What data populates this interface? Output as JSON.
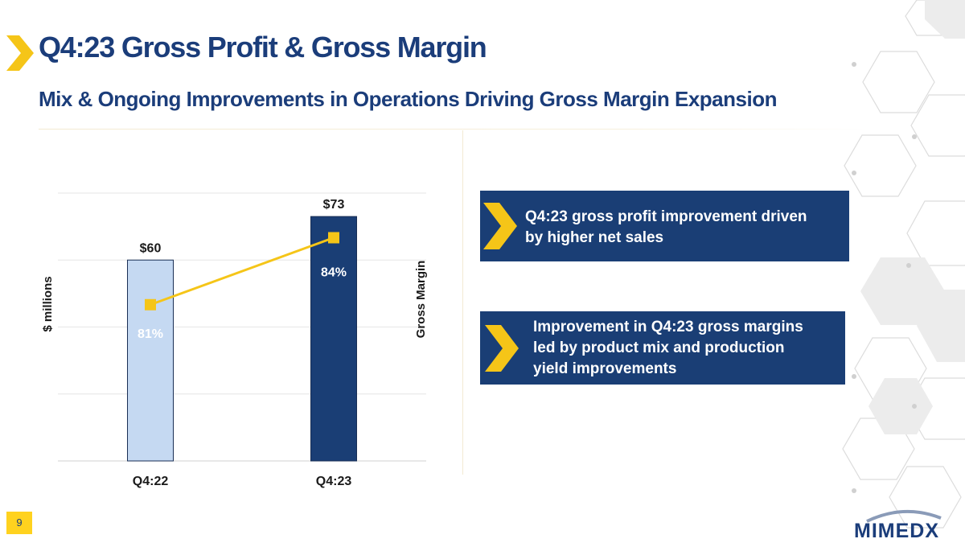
{
  "slide": {
    "title": "Q4:23 Gross Profit & Gross Margin",
    "subtitle": "Mix & Ongoing Improvements in Operations Driving Gross Margin Expansion",
    "page_number": "9",
    "logo": "MIMEDX"
  },
  "colors": {
    "navy": "#1a3e75",
    "light_blue": "#c5d9f2",
    "gold": "#f5c518",
    "title_blue": "#1b3d7a"
  },
  "chart_data": {
    "type": "bar",
    "categories": [
      "Q4:22",
      "Q4:23"
    ],
    "series": [
      {
        "name": "Gross Profit",
        "axis": "left",
        "type": "bar",
        "values": [
          60,
          73
        ],
        "labels": [
          "$60",
          "$73"
        ]
      },
      {
        "name": "Gross Margin",
        "axis": "right",
        "type": "line",
        "values": [
          81,
          84
        ],
        "labels": [
          "81%",
          "84%"
        ]
      }
    ],
    "ylabel": "$ millions",
    "y2label": "Gross Margin",
    "ylim": [
      0,
      80
    ],
    "y2lim": [
      74,
      86
    ],
    "grid": true
  },
  "callouts": [
    {
      "text": "Q4:23 gross profit improvement driven by higher net sales",
      "lines": [
        "Q4:23 gross profit improvement driven",
        "by higher net sales"
      ]
    },
    {
      "text": "Improvement in Q4:23 gross margins led by product mix and production yield improvements",
      "lines": [
        "Improvement in Q4:23 gross margins",
        "led by product mix and production",
        "yield improvements"
      ]
    }
  ]
}
